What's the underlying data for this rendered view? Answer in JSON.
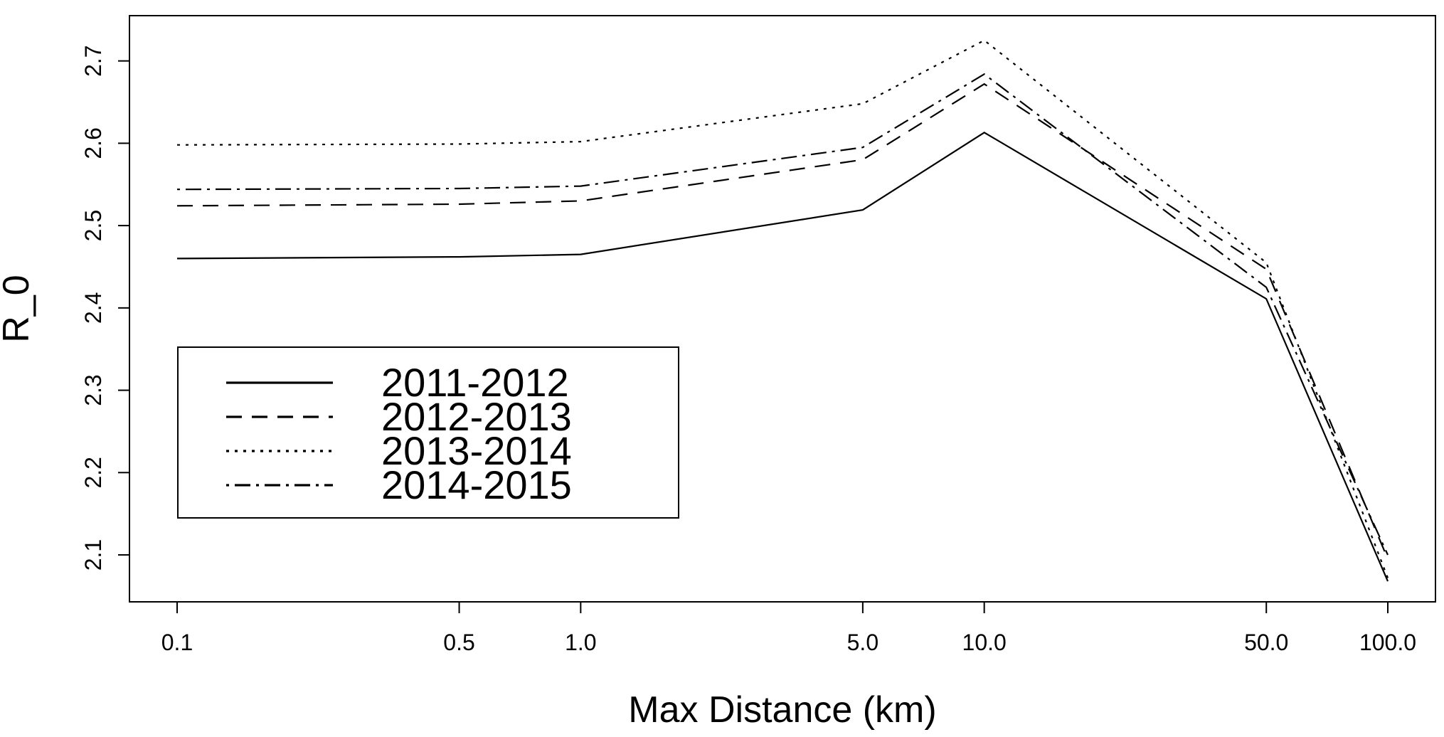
{
  "chart_data": {
    "type": "line",
    "title": "",
    "xlabel": "Max Distance (km)",
    "ylabel": "R_0",
    "x_scale": "log",
    "x": [
      0.1,
      0.5,
      1.0,
      5.0,
      10.0,
      50.0,
      100.0
    ],
    "x_tick_labels": [
      "0.1",
      "0.5",
      "1.0",
      "5.0",
      "10.0",
      "50.0",
      "100.0"
    ],
    "y_ticks": [
      2.1,
      2.2,
      2.3,
      2.4,
      2.5,
      2.6,
      2.7
    ],
    "y_tick_labels": [
      "2.1",
      "2.2",
      "2.3",
      "2.4",
      "2.5",
      "2.6",
      "2.7"
    ],
    "xlim": [
      0.08,
      140
    ],
    "ylim": [
      2.043,
      2.755
    ],
    "grid": false,
    "legend_position": "center-left",
    "series": [
      {
        "name": "2011-2012",
        "line_style": "solid",
        "values": [
          2.46,
          2.462,
          2.465,
          2.519,
          2.613,
          2.411,
          2.068
        ]
      },
      {
        "name": "2012-2013",
        "line_style": "dashed",
        "values": [
          2.524,
          2.526,
          2.53,
          2.58,
          2.672,
          2.447,
          2.095
        ]
      },
      {
        "name": "2013-2014",
        "line_style": "dotted",
        "values": [
          2.598,
          2.599,
          2.602,
          2.648,
          2.725,
          2.455,
          2.072
        ]
      },
      {
        "name": "2014-2015",
        "line_style": "dotdash",
        "values": [
          2.544,
          2.545,
          2.548,
          2.595,
          2.684,
          2.425,
          2.1
        ]
      }
    ],
    "colors": {
      "line": "#000000",
      "background": "#ffffff"
    }
  }
}
